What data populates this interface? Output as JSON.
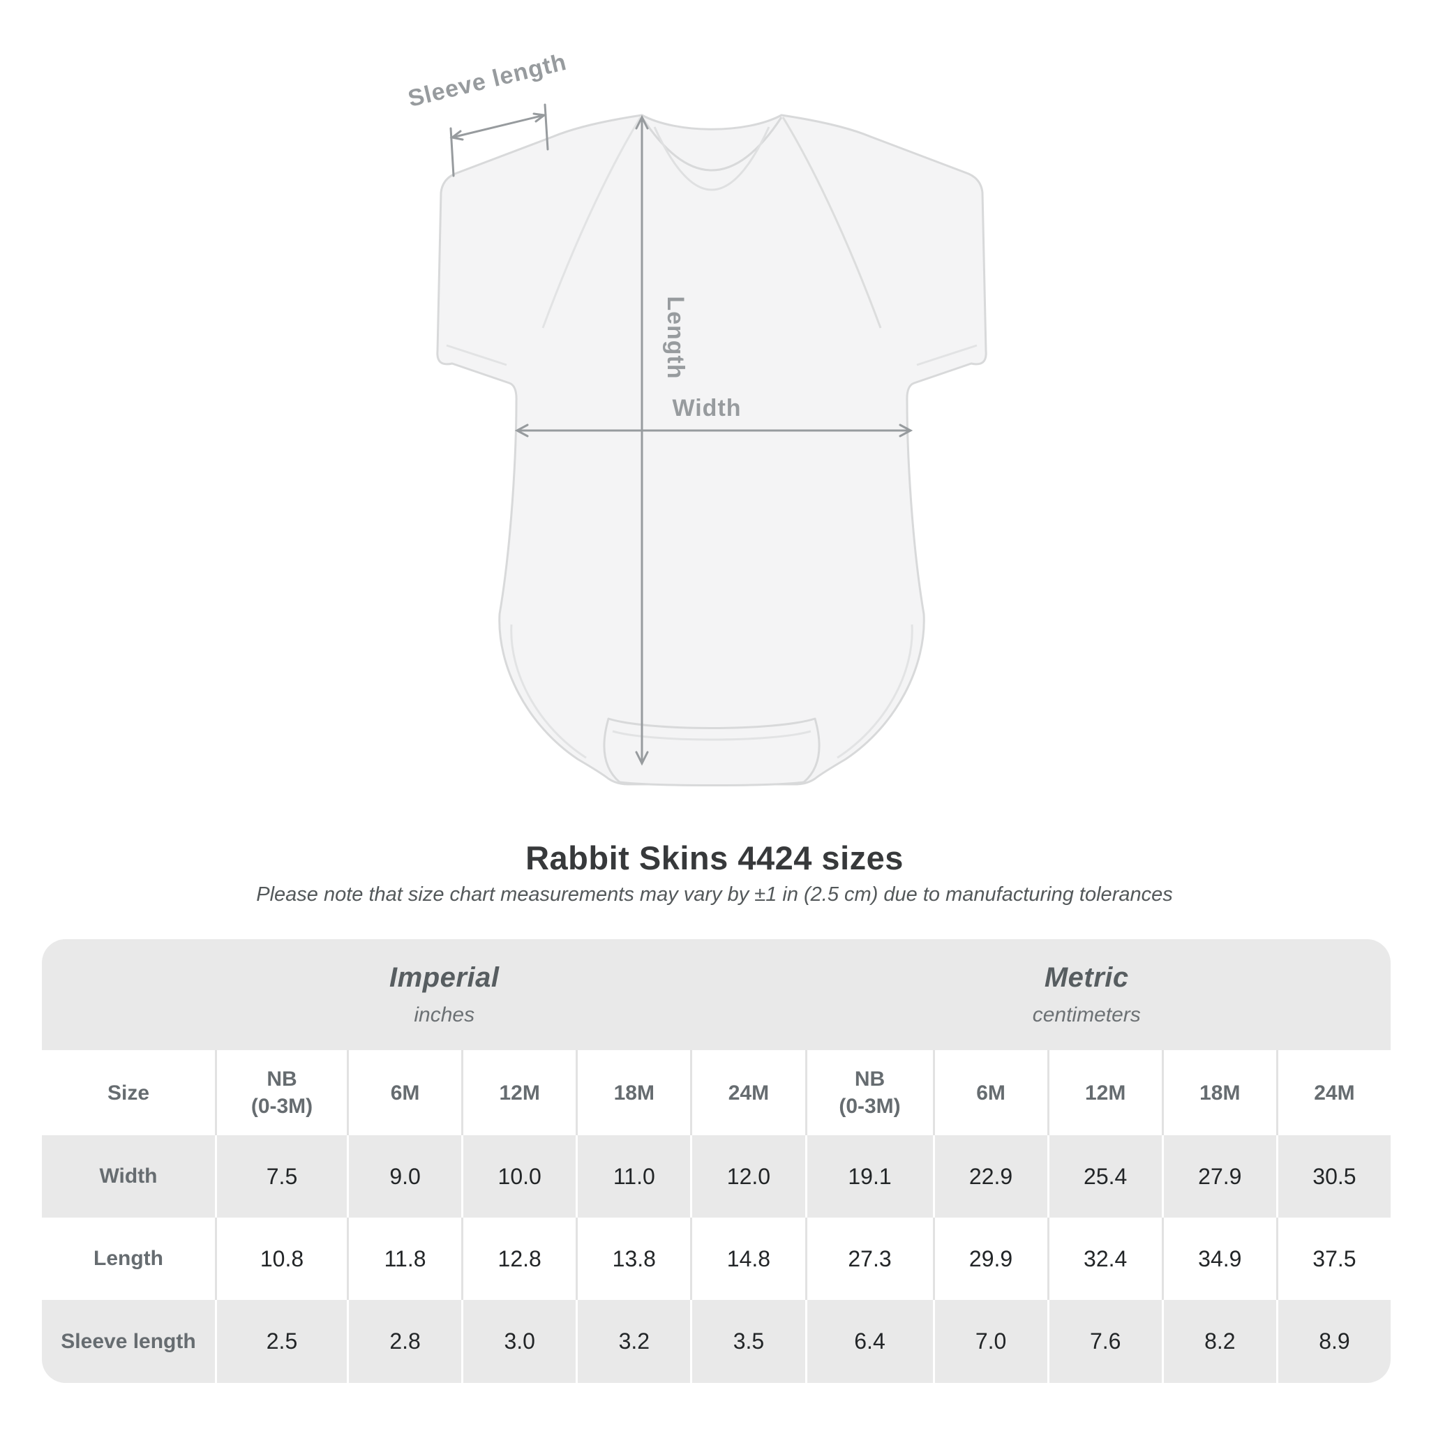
{
  "figure": {
    "sleeve_length_label": "Sleeve length",
    "length_label": "Length",
    "width_label": "Width"
  },
  "title": "Rabbit Skins 4424 sizes",
  "subtitle": "Please note that size chart measurements may vary by ±1 in (2.5 cm) due to manufacturing tolerances",
  "chart_data": {
    "type": "table",
    "title": "Rabbit Skins 4424 sizes",
    "subtitle": "Please note that size chart measurements may vary by ±1 in (2.5 cm) due to manufacturing tolerances",
    "column_groups": [
      {
        "label": "Imperial",
        "unit": "inches"
      },
      {
        "label": "Metric",
        "unit": "centimeters"
      }
    ],
    "size_header": "Size",
    "columns": [
      {
        "group": "Imperial",
        "lines": [
          "NB",
          "(0-3M)"
        ]
      },
      {
        "group": "Imperial",
        "lines": [
          "6M"
        ]
      },
      {
        "group": "Imperial",
        "lines": [
          "12M"
        ]
      },
      {
        "group": "Imperial",
        "lines": [
          "18M"
        ]
      },
      {
        "group": "Imperial",
        "lines": [
          "24M"
        ]
      },
      {
        "group": "Metric",
        "lines": [
          "NB",
          "(0-3M)"
        ]
      },
      {
        "group": "Metric",
        "lines": [
          "6M"
        ]
      },
      {
        "group": "Metric",
        "lines": [
          "12M"
        ]
      },
      {
        "group": "Metric",
        "lines": [
          "18M"
        ]
      },
      {
        "group": "Metric",
        "lines": [
          "24M"
        ]
      }
    ],
    "rows": [
      {
        "label": "Width",
        "values": [
          "7.5",
          "9.0",
          "10.0",
          "11.0",
          "12.0",
          "19.1",
          "22.9",
          "25.4",
          "27.9",
          "30.5"
        ]
      },
      {
        "label": "Length",
        "values": [
          "10.8",
          "11.8",
          "12.8",
          "13.8",
          "14.8",
          "27.3",
          "29.9",
          "32.4",
          "34.9",
          "37.5"
        ]
      },
      {
        "label": "Sleeve length",
        "values": [
          "2.5",
          "2.8",
          "3.0",
          "3.2",
          "3.5",
          "6.4",
          "7.0",
          "7.6",
          "8.2",
          "8.9"
        ]
      }
    ],
    "diagram_annotations": [
      "Sleeve length",
      "Length",
      "Width"
    ]
  },
  "colors": {
    "table_band": "#e9e9e9",
    "annotation_gray": "#979b9e",
    "header_text": "#666c70",
    "value_text": "#222527",
    "title_text": "#37393b"
  }
}
